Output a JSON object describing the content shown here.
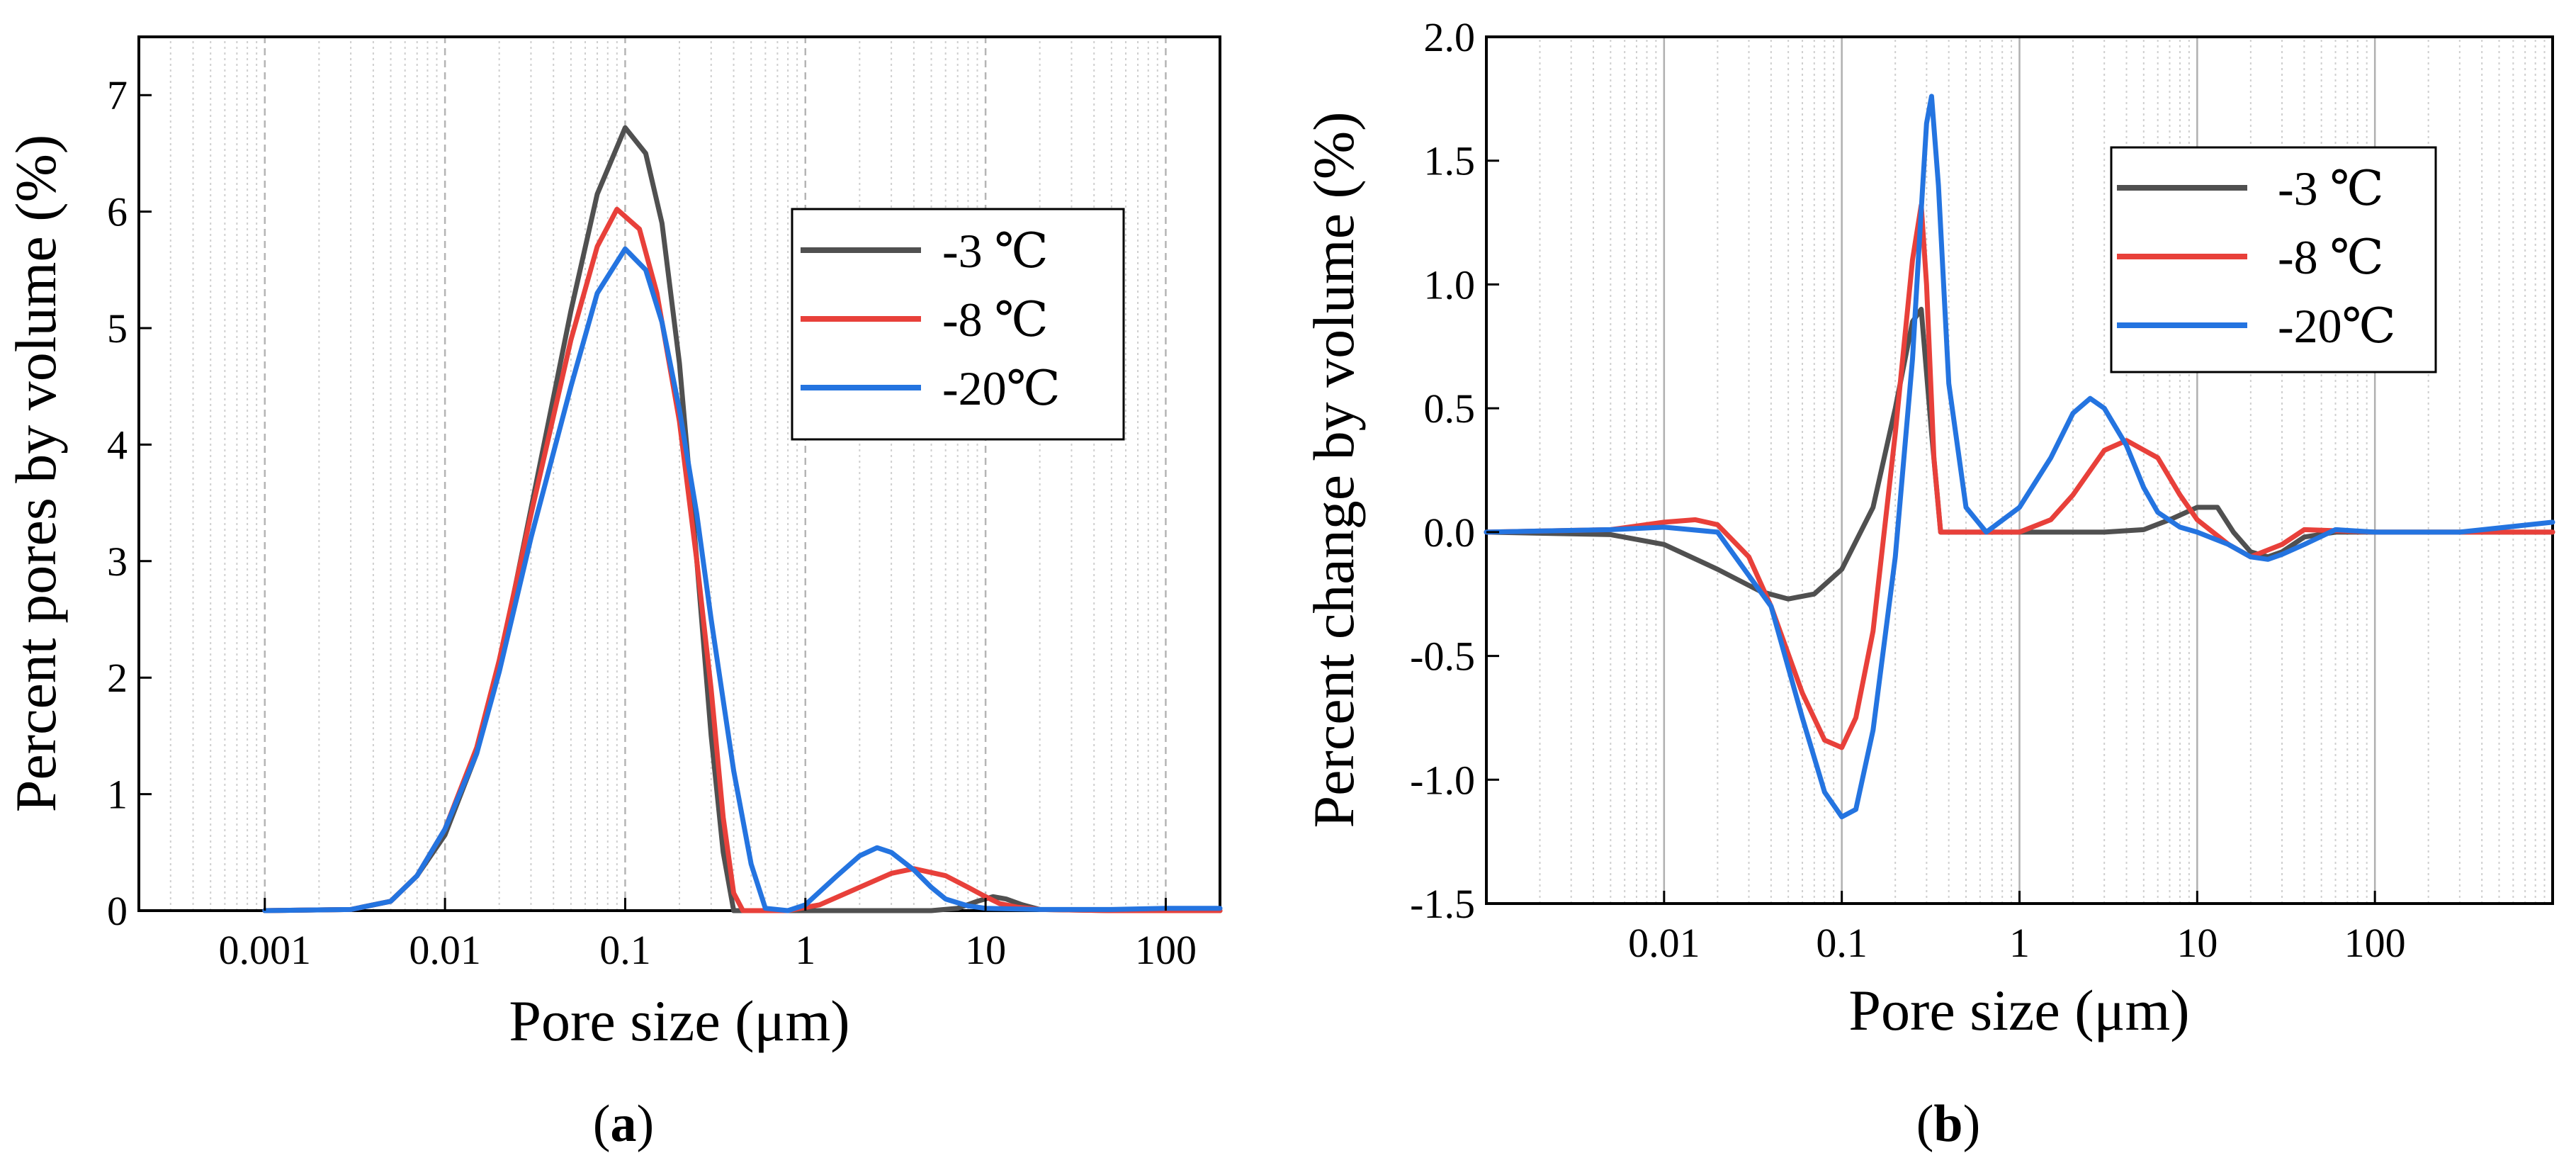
{
  "chart_data": [
    {
      "panel_label": "a",
      "type": "line",
      "xlabel": "Pore size (μm)",
      "ylabel": "Percent pores by volume (%)",
      "x_scale": "log",
      "xlim": [
        0.0002,
        200
      ],
      "ylim": [
        0,
        7.5
      ],
      "x_ticks": [
        0.001,
        0.01,
        0.1,
        1,
        10,
        100
      ],
      "x_tick_labels": [
        "0.001",
        "0.01",
        "0.1",
        "1",
        "10",
        "100"
      ],
      "y_ticks": [
        0,
        1,
        2,
        3,
        4,
        5,
        6,
        7
      ],
      "y_tick_labels": [
        "0",
        "1",
        "2",
        "3",
        "4",
        "5",
        "6",
        "7"
      ],
      "grid": "vertical dotted minor and dashed major lines",
      "legend_position": "upper-right",
      "series": [
        {
          "name": "-3 ℃",
          "color": "#505050",
          "x": [
            0.001,
            0.003,
            0.005,
            0.007,
            0.01,
            0.015,
            0.02,
            0.03,
            0.05,
            0.07,
            0.1,
            0.13,
            0.16,
            0.2,
            0.25,
            0.3,
            0.35,
            0.4,
            0.5,
            1,
            3,
            5,
            7,
            9,
            11,
            13,
            16,
            20,
            50,
            200
          ],
          "y": [
            0,
            0.01,
            0.08,
            0.3,
            0.65,
            1.35,
            2.1,
            3.45,
            5.15,
            6.15,
            6.72,
            6.5,
            5.9,
            4.7,
            3.0,
            1.5,
            0.5,
            0.0,
            0,
            0,
            0,
            0,
            0.02,
            0.08,
            0.12,
            0.1,
            0.05,
            0.01,
            0,
            0
          ]
        },
        {
          "name": "-8 ℃",
          "color": "#e8403a",
          "x": [
            0.001,
            0.003,
            0.005,
            0.007,
            0.01,
            0.015,
            0.02,
            0.03,
            0.05,
            0.07,
            0.09,
            0.12,
            0.15,
            0.2,
            0.25,
            0.3,
            0.35,
            0.4,
            0.45,
            0.55,
            0.8,
            1.2,
            2,
            3,
            4,
            6,
            8,
            10,
            12,
            15,
            20,
            50,
            200
          ],
          "y": [
            0,
            0.01,
            0.08,
            0.3,
            0.7,
            1.4,
            2.15,
            3.4,
            4.9,
            5.7,
            6.02,
            5.85,
            5.3,
            4.2,
            3.0,
            1.9,
            0.8,
            0.15,
            0,
            0,
            0,
            0.05,
            0.2,
            0.32,
            0.36,
            0.3,
            0.2,
            0.12,
            0.06,
            0.03,
            0.01,
            0,
            0
          ]
        },
        {
          "name": "-20℃",
          "color": "#2474e0",
          "x": [
            0.001,
            0.003,
            0.005,
            0.007,
            0.01,
            0.015,
            0.02,
            0.03,
            0.05,
            0.07,
            0.1,
            0.13,
            0.16,
            0.2,
            0.25,
            0.3,
            0.4,
            0.5,
            0.6,
            0.8,
            1,
            1.5,
            2,
            2.5,
            3,
            4,
            5,
            6,
            8,
            10,
            20,
            50,
            100,
            200
          ],
          "y": [
            0,
            0.01,
            0.08,
            0.3,
            0.7,
            1.35,
            2.05,
            3.2,
            4.5,
            5.3,
            5.68,
            5.5,
            5.05,
            4.3,
            3.4,
            2.5,
            1.2,
            0.4,
            0.02,
            0,
            0.05,
            0.3,
            0.47,
            0.54,
            0.5,
            0.35,
            0.2,
            0.1,
            0.04,
            0.02,
            0.01,
            0.01,
            0.02,
            0.02
          ]
        }
      ]
    },
    {
      "panel_label": "b",
      "type": "line",
      "xlabel": "Pore size (μm)",
      "ylabel": "Percent change by volume (%)",
      "x_scale": "log",
      "xlim": [
        0.001,
        1000
      ],
      "ylim": [
        -1.5,
        2.0
      ],
      "x_ticks": [
        0.01,
        0.1,
        1,
        10,
        100
      ],
      "x_tick_labels": [
        "0.01",
        "0.1",
        "1",
        "10",
        "100"
      ],
      "y_ticks": [
        -1.5,
        -1.0,
        -0.5,
        0.0,
        0.5,
        1.0,
        1.5,
        2.0
      ],
      "y_tick_labels": [
        "-1.5",
        "-1.0",
        "-0.5",
        "0.0",
        "0.5",
        "1.0",
        "1.5",
        "2.0"
      ],
      "grid": "vertical solid major and dotted minor lines",
      "legend_position": "upper-right",
      "series": [
        {
          "name": "-3 ℃",
          "color": "#505050",
          "x": [
            0.001,
            0.005,
            0.01,
            0.02,
            0.035,
            0.05,
            0.07,
            0.1,
            0.15,
            0.2,
            0.25,
            0.28,
            0.32,
            0.36,
            0.4,
            1,
            3,
            5,
            7,
            10,
            13,
            16,
            20,
            25,
            30,
            40,
            60,
            100,
            1000
          ],
          "y": [
            0,
            -0.01,
            -0.05,
            -0.15,
            -0.24,
            -0.27,
            -0.25,
            -0.15,
            0.1,
            0.5,
            0.85,
            0.9,
            0.4,
            0.0,
            0,
            0,
            0,
            0.01,
            0.05,
            0.1,
            0.1,
            0.0,
            -0.08,
            -0.1,
            -0.08,
            -0.02,
            0,
            0,
            0
          ]
        },
        {
          "name": "-8 ℃",
          "color": "#e8403a",
          "x": [
            0.001,
            0.005,
            0.01,
            0.015,
            0.02,
            0.03,
            0.04,
            0.06,
            0.08,
            0.1,
            0.12,
            0.15,
            0.2,
            0.25,
            0.28,
            0.3,
            0.33,
            0.36,
            0.4,
            0.6,
            1,
            1.5,
            2,
            3,
            4,
            6,
            8,
            10,
            15,
            20,
            30,
            40,
            100,
            1000
          ],
          "y": [
            0,
            0.01,
            0.04,
            0.05,
            0.03,
            -0.1,
            -0.3,
            -0.65,
            -0.84,
            -0.87,
            -0.75,
            -0.4,
            0.4,
            1.1,
            1.32,
            1.0,
            0.3,
            0.0,
            0,
            0,
            0,
            0.05,
            0.15,
            0.33,
            0.37,
            0.3,
            0.15,
            0.05,
            -0.05,
            -0.1,
            -0.05,
            0.01,
            0,
            0
          ]
        },
        {
          "name": "-20℃",
          "color": "#2474e0",
          "x": [
            0.001,
            0.005,
            0.01,
            0.02,
            0.04,
            0.06,
            0.08,
            0.1,
            0.12,
            0.15,
            0.2,
            0.25,
            0.28,
            0.3,
            0.32,
            0.35,
            0.4,
            0.5,
            0.65,
            1,
            1.5,
            2,
            2.5,
            3,
            4,
            5,
            6,
            8,
            10,
            15,
            20,
            25,
            30,
            40,
            60,
            100,
            300,
            1000
          ],
          "y": [
            0,
            0.01,
            0.02,
            0.0,
            -0.3,
            -0.75,
            -1.05,
            -1.15,
            -1.12,
            -0.8,
            -0.1,
            0.7,
            1.3,
            1.65,
            1.76,
            1.4,
            0.6,
            0.1,
            0.0,
            0.1,
            0.3,
            0.48,
            0.54,
            0.5,
            0.35,
            0.18,
            0.08,
            0.02,
            0.0,
            -0.05,
            -0.1,
            -0.11,
            -0.09,
            -0.05,
            0.01,
            0.0,
            0.0,
            0.04
          ]
        }
      ]
    }
  ]
}
